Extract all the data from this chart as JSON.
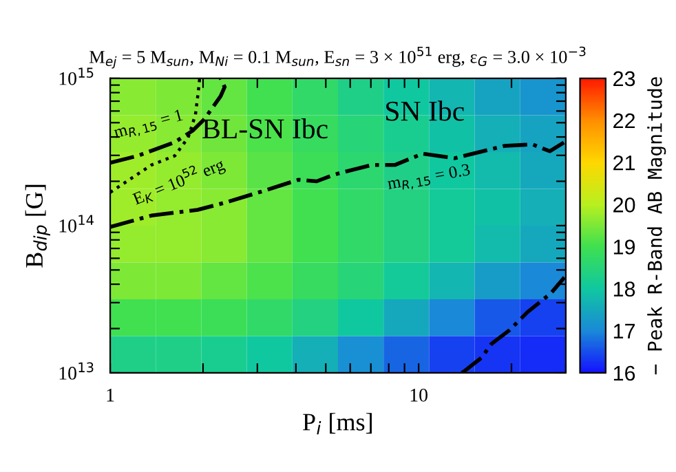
{
  "chart_data": {
    "type": "heatmap",
    "title": "M$_{ej}$ = 5 M$_{sun}$, M$_{Ni}$ = 0.1 M$_{sun}$, E$_{sn}$ = 3 × 10$^{51}$ erg, ε$_{G}$ = 3.0 × 10$^{−3}$",
    "xlabel": "P$_{i}$ [ms]",
    "ylabel": "B$_{dip}$ [G]",
    "clabel": "− Peak R-Band AB Magnitude",
    "log": "xy",
    "xlim": [
      1,
      30
    ],
    "ylim": [
      10000000000000.0,
      1000000000000000.0
    ],
    "xticks": [
      1,
      {
        "value": 2,
        "label": null
      },
      {
        "value": 3,
        "label": null
      },
      {
        "value": 4,
        "label": null
      },
      {
        "value": 5,
        "label": null
      },
      {
        "value": 6,
        "label": null
      },
      {
        "value": 7,
        "label": null
      },
      {
        "value": 8,
        "label": null
      },
      {
        "value": 9,
        "label": null
      },
      10,
      {
        "value": 20,
        "label": null
      },
      {
        "value": 30,
        "label": null
      }
    ],
    "yticks": [
      {
        "value": 10000000000000.0,
        "label": "10$^{13}$"
      },
      {
        "value": 20000000000000.0,
        "label": null
      },
      {
        "value": 30000000000000.0,
        "label": null
      },
      {
        "value": 40000000000000.0,
        "label": null
      },
      {
        "value": 50000000000000.0,
        "label": null
      },
      {
        "value": 60000000000000.0,
        "label": null
      },
      {
        "value": 70000000000000.0,
        "label": null
      },
      {
        "value": 80000000000000.0,
        "label": null
      },
      {
        "value": 90000000000000.0,
        "label": null
      },
      {
        "value": 100000000000000.0,
        "label": "10$^{14}$"
      },
      {
        "value": 200000000000000.0,
        "label": null
      },
      {
        "value": 300000000000000.0,
        "label": null
      },
      {
        "value": 400000000000000.0,
        "label": null
      },
      {
        "value": 500000000000000.0,
        "label": null
      },
      {
        "value": 600000000000000.0,
        "label": null
      },
      {
        "value": 700000000000000.0,
        "label": null
      },
      {
        "value": 800000000000000.0,
        "label": null
      },
      {
        "value": 900000000000000.0,
        "label": null
      },
      {
        "value": 1000000000000000.0,
        "label": "10$^{15}$"
      }
    ],
    "clim": [
      16,
      23
    ],
    "cticks": [
      16,
      17,
      18,
      19,
      20,
      21,
      22,
      23
    ],
    "cells": [
      [
        19.6,
        19.5,
        19.3,
        19.0,
        18.7,
        18.3,
        18.0,
        17.7,
        17.4,
        17.2
      ],
      [
        19.7,
        19.6,
        19.4,
        19.1,
        18.8,
        18.5,
        18.2,
        17.9,
        17.6,
        17.4
      ],
      [
        19.8,
        19.7,
        19.5,
        19.2,
        18.9,
        18.6,
        18.3,
        18.0,
        17.8,
        17.5
      ],
      [
        19.8,
        19.7,
        19.6,
        19.3,
        19.0,
        18.7,
        18.4,
        18.1,
        17.9,
        17.6
      ],
      [
        19.7,
        19.7,
        19.6,
        19.3,
        19.0,
        18.7,
        18.4,
        18.1,
        17.8,
        17.5
      ],
      [
        19.5,
        19.5,
        19.3,
        19.1,
        18.8,
        18.5,
        18.1,
        17.7,
        17.3,
        17.0
      ],
      [
        19.0,
        19.0,
        18.9,
        18.7,
        18.4,
        18.0,
        17.5,
        17.0,
        16.6,
        16.4
      ],
      [
        18.3,
        18.3,
        18.2,
        18.0,
        17.6,
        17.1,
        16.7,
        16.4,
        16.3,
        16.2
      ]
    ],
    "series": [
      {
        "type": "line",
        "color": "#000000",
        "line_style": "dashed",
        "x": [
          1,
          1.23,
          1.62,
          1.85,
          2.02,
          2.28,
          2.35,
          2.28
        ],
        "values": [
          267000000000000.0,
          298000000000000.0,
          369000000000000.0,
          441000000000000.0,
          528000000000000.0,
          756000000000000.0,
          873000000000000.0,
          1000000000000000.0
        ]
      },
      {
        "type": "line",
        "color": "#000000",
        "line_style": "dotted",
        "x": [
          1,
          1.36,
          1.62,
          1.79,
          1.89,
          1.93,
          1.95
        ],
        "values": [
          168000000000000.0,
          258000000000000.0,
          298000000000000.0,
          396000000000000.0,
          568000000000000.0,
          810000000000000.0,
          1000000000000000.0
        ]
      },
      {
        "type": "line",
        "color": "#000000",
        "line_style": "dashed",
        "x": [
          1,
          1.36,
          1.92,
          2.35,
          3.2,
          4.08,
          4.67,
          5.36,
          7.05,
          8.37,
          10.3,
          13.1,
          19.0,
          23.4,
          26.6,
          29.7
        ],
        "values": [
          98000000000000.0,
          117000000000000.0,
          128000000000000.0,
          143000000000000.0,
          174000000000000.0,
          205000000000000.0,
          200000000000000.0,
          223000000000000.0,
          258000000000000.0,
          258000000000000.0,
          308000000000000.0,
          287000000000000.0,
          348000000000000.0,
          356000000000000.0,
          320000000000000.0,
          369000000000000.0
        ]
      },
      {
        "type": "line",
        "color": "#000000",
        "line_style": "dashed",
        "x": [
          13.8,
          14.0,
          16.0,
          17.2,
          19.7,
          22.6,
          26.8,
          29.7
        ],
        "values": [
          10000000000000.0,
          10200000000000.0,
          12700000000000.0,
          15700000000000.0,
          19500000000000.0,
          26000000000000.0,
          34600000000000.0,
          44500000000000.0
        ]
      }
    ],
    "annotations": [
      "m$_{R,15}$ = 1",
      "E$_{K}$ = 10$^{52}$ erg",
      "m$_{R,15}$ = 0.3",
      "BL-SN Ibc",
      "SN Ibc"
    ]
  }
}
